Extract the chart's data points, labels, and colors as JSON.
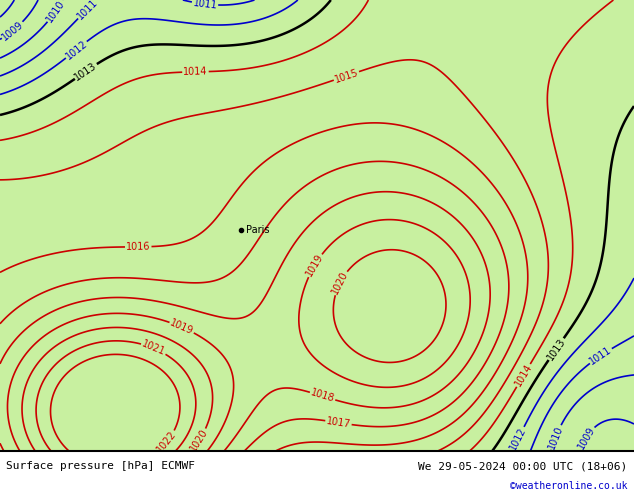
{
  "title_left": "Surface pressure [hPa] ECMWF",
  "title_right": "We 29-05-2024 00:00 UTC (18+06)",
  "credit": "©weatheronline.co.uk",
  "color_green": "#c8f0a0",
  "color_gray": "#d0d0d0",
  "color_blue": "#0000cc",
  "color_black": "#000000",
  "color_red": "#cc0000",
  "color_credit": "#0000cc",
  "paris_label": "Paris",
  "fig_width": 6.34,
  "fig_height": 4.9,
  "dpi": 100,
  "font_size_labels": 7,
  "font_size_bottom": 8,
  "font_size_credit": 7
}
